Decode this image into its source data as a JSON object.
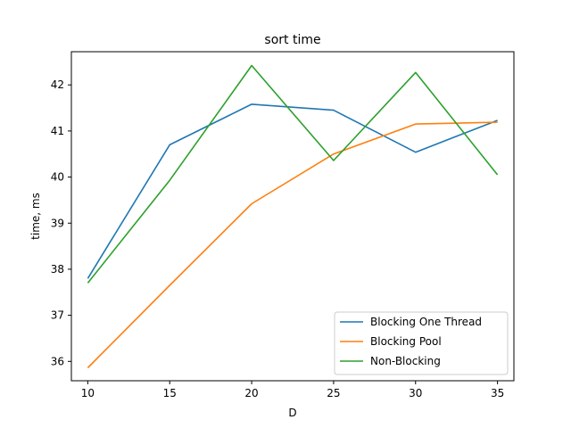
{
  "chart_data": {
    "type": "line",
    "title": "sort time",
    "xlabel": "D",
    "ylabel": "time, ms",
    "x": [
      10,
      15,
      20,
      25,
      30,
      35
    ],
    "xlim": [
      9.0,
      36.0
    ],
    "ylim": [
      35.58,
      42.72
    ],
    "xticks": [
      10,
      15,
      20,
      25,
      30,
      35
    ],
    "yticks": [
      36,
      37,
      38,
      39,
      40,
      41,
      42
    ],
    "grid": false,
    "legend_position": "lower-right",
    "series": [
      {
        "name": "Blocking One Thread",
        "color": "#1f77b4",
        "values": [
          37.8,
          40.7,
          41.58,
          41.45,
          40.54,
          41.23
        ]
      },
      {
        "name": "Blocking Pool",
        "color": "#ff7f0e",
        "values": [
          35.86,
          37.65,
          39.42,
          40.5,
          41.15,
          41.19
        ]
      },
      {
        "name": "Non-Blocking",
        "color": "#2ca02c",
        "values": [
          37.7,
          39.93,
          42.42,
          40.36,
          42.27,
          40.05
        ]
      }
    ]
  }
}
